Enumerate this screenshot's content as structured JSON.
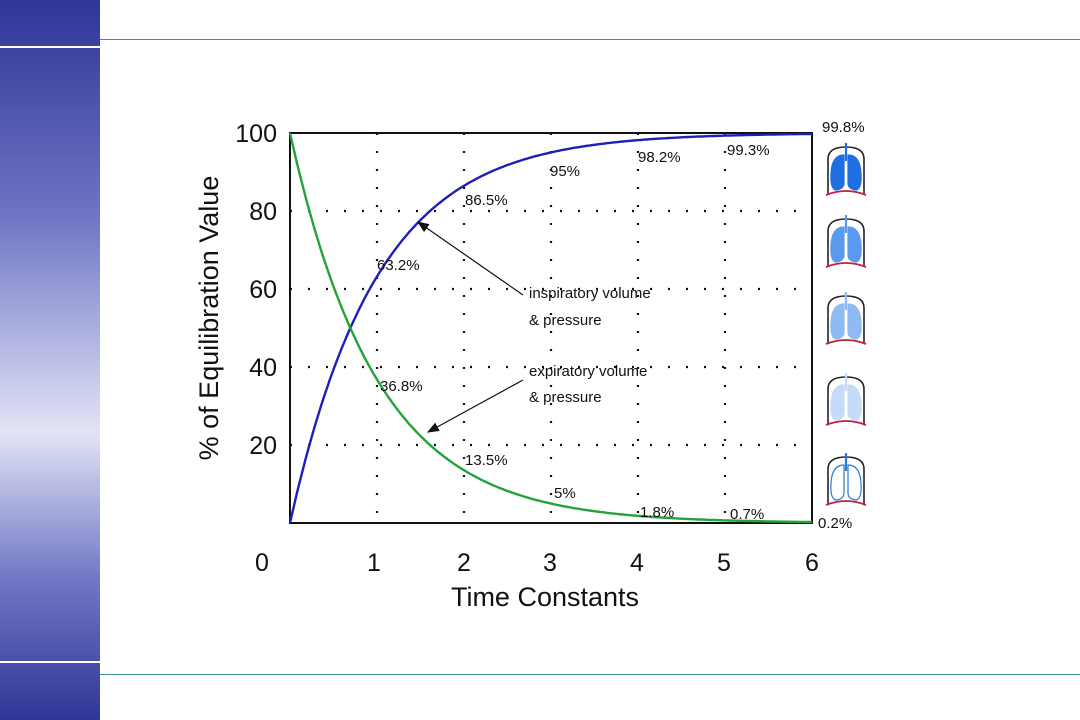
{
  "colors": {
    "inspiratory": "#1f1fb8",
    "expiratory": "#23a33a",
    "side_band": "#3a3f9e",
    "rule": "#3a8f8f",
    "lung_shades": [
      "#1f6fe0",
      "#5a9aee",
      "#8ebcf2",
      "#c4dcf7",
      "#ffffff"
    ]
  },
  "icons": [
    "lungs-icon",
    "lungs-icon",
    "lungs-icon",
    "lungs-icon",
    "lungs-icon"
  ],
  "chart_data": {
    "type": "line",
    "title": "",
    "xlabel": "Time Constants",
    "ylabel": "% of Equilibration Value",
    "xlim": [
      0,
      6
    ],
    "ylim": [
      0,
      100
    ],
    "x_ticks": [
      "0",
      "1",
      "2",
      "3",
      "4",
      "5",
      "6"
    ],
    "y_ticks": [
      "20",
      "40",
      "60",
      "80",
      "100"
    ],
    "grid": true,
    "series": [
      {
        "name": "inspiratory volume & pressure",
        "x": [
          0,
          1,
          2,
          3,
          4,
          5,
          6
        ],
        "y": [
          0,
          63.2,
          86.5,
          95,
          98.2,
          99.3,
          99.8
        ],
        "point_labels": [
          "",
          "63.2%",
          "86.5%",
          "95%",
          "98.2%",
          "99.3%",
          "99.8%"
        ]
      },
      {
        "name": "expiratory volume & pressure",
        "x": [
          0,
          1,
          2,
          3,
          4,
          5,
          6
        ],
        "y": [
          100,
          36.8,
          13.5,
          5,
          1.8,
          0.7,
          0.2
        ],
        "point_labels": [
          "",
          "36.8%",
          "13.5%",
          "5%",
          "1.8%",
          "0.7%",
          "0.2%"
        ]
      }
    ],
    "annotations": [
      {
        "line1": "inspiratory volume",
        "line2": "& pressure"
      },
      {
        "line1": "expiratory volume",
        "line2": "& pressure"
      }
    ]
  }
}
